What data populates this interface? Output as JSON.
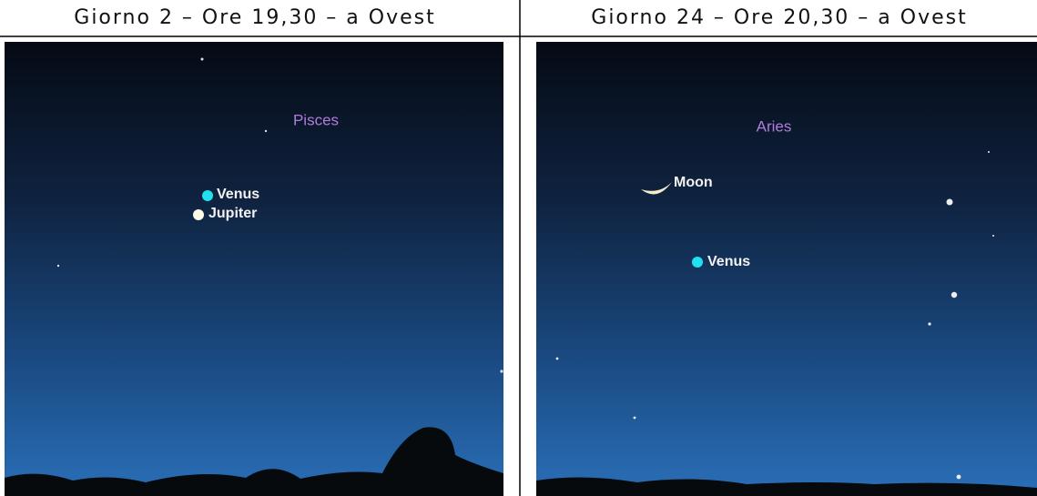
{
  "panels": [
    {
      "caption": "Giorno 2 – Ore 19,30 – a Ovest",
      "constellation": "Pisces",
      "objects": [
        "Venus",
        "Jupiter"
      ]
    },
    {
      "caption": "Giorno 24 – Ore 20,30 – a Ovest",
      "constellation": "Aries",
      "objects": [
        "Moon",
        "Venus"
      ]
    }
  ]
}
